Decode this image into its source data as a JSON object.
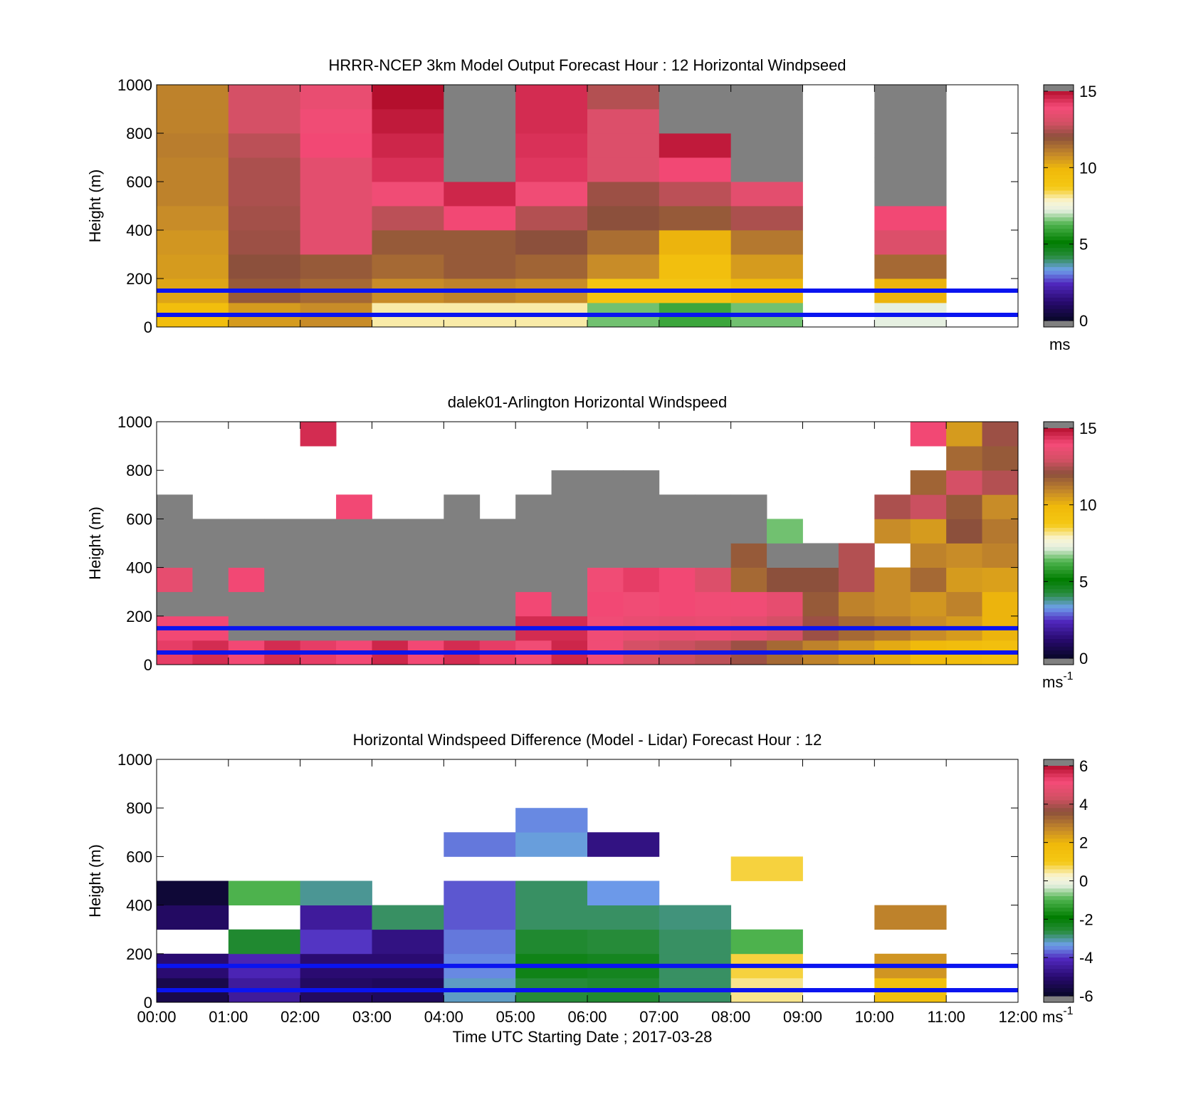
{
  "figure": {
    "xlabel": "Time UTC  Starting Date ; 2017-03-28",
    "x_ticks": [
      "00:00",
      "01:00",
      "02:00",
      "03:00",
      "04:00",
      "05:00",
      "06:00",
      "07:00",
      "08:00",
      "09:00",
      "10:00",
      "11:00",
      "12:00"
    ]
  },
  "colors": {
    "reference_lines": "#0a14f0",
    "missing": "#808080"
  },
  "chart_data": [
    {
      "type": "heatmap",
      "title": "HRRR-NCEP 3km Model Output   Forecast Hour : 12 Horizontal Windpseed",
      "ylabel": "Height (m)",
      "xlim": [
        0,
        12
      ],
      "ylim": [
        0,
        1000
      ],
      "y_ticks": [
        "0",
        "200",
        "400",
        "600",
        "800",
        "1000"
      ],
      "colorbar": {
        "range": [
          0,
          15
        ],
        "ticks": [
          "0",
          "5",
          "10",
          "15"
        ],
        "unit": "ms"
      },
      "reference_lines_m": [
        50,
        150
      ],
      "x_bins_hours": 1,
      "y_bin_m": 100,
      "note_values": "wind speed m/s per hourly column, rows from 0 m upward in 100 m bins; null = no data; \"M\" = gray (missing/above range)",
      "columns": [
        [
          9.5,
          10.3,
          10.5,
          10.6,
          10.8,
          11.0,
          11.0,
          11.1,
          11.0,
          11.0
        ],
        [
          10.5,
          11.8,
          12.0,
          12.2,
          12.3,
          12.4,
          12.4,
          12.6,
          13.0,
          13.0
        ],
        [
          10.8,
          11.5,
          11.8,
          13.4,
          13.4,
          13.4,
          13.4,
          14.0,
          13.8,
          13.6
        ],
        [
          8.0,
          10.8,
          11.5,
          11.8,
          12.6,
          13.8,
          14.4,
          14.6,
          14.8,
          15.0
        ],
        [
          8.0,
          11.0,
          11.8,
          11.8,
          14.0,
          14.6,
          "M",
          "M",
          "M",
          "M"
        ],
        [
          8.0,
          10.8,
          11.6,
          12.0,
          12.5,
          13.8,
          14.3,
          14.4,
          14.5,
          14.5
        ],
        [
          6.5,
          9.0,
          10.8,
          11.4,
          12.0,
          12.2,
          13.2,
          13.2,
          13.2,
          12.5
        ],
        [
          6.0,
          9.0,
          9.4,
          10.0,
          11.8,
          12.6,
          14.0,
          14.8,
          "M",
          "M"
        ],
        [
          6.5,
          9.8,
          10.5,
          11.2,
          12.4,
          13.4,
          "M",
          "M",
          "M",
          "M"
        ],
        [
          null,
          null,
          null,
          null,
          null,
          null,
          null,
          null,
          null,
          null
        ],
        [
          7.2,
          10.0,
          11.5,
          13.2,
          14.0,
          "M",
          "M",
          "M",
          "M",
          "M"
        ],
        [
          null,
          null,
          null,
          null,
          null,
          null,
          null,
          null,
          null,
          null
        ]
      ]
    },
    {
      "type": "heatmap",
      "title": "dalek01-Arlington  Horizontal Windspeed",
      "ylabel": "Height (m)",
      "xlim": [
        0,
        12
      ],
      "ylim": [
        0,
        1000
      ],
      "y_ticks": [
        "0",
        "200",
        "400",
        "600",
        "800",
        "1000"
      ],
      "colorbar": {
        "range": [
          0,
          15
        ],
        "ticks": [
          "0",
          "5",
          "10",
          "15"
        ],
        "unit": "ms",
        "unit_exponent": "-1"
      },
      "reference_lines_m": [
        50,
        150
      ],
      "x_bins_hours": 0.5,
      "y_bin_m": 100,
      "note_values": "approximate lidar wind speed m/s per half-hour column (24 columns), rows 0-1000 m in 100 m bins; null = no data; \"M\" = gray",
      "columns": [
        [
          14.2,
          14.0,
          "M",
          13.5,
          "M",
          "M",
          "M",
          null,
          null,
          null
        ],
        [
          14.5,
          14.0,
          "M",
          "M",
          "M",
          "M",
          null,
          null,
          null,
          null
        ],
        [
          14.0,
          "M",
          "M",
          14.0,
          "M",
          "M",
          null,
          null,
          null,
          null
        ],
        [
          14.5,
          "M",
          "M",
          "M",
          "M",
          "M",
          null,
          null,
          null,
          null
        ],
        [
          14.2,
          "M",
          "M",
          "M",
          "M",
          "M",
          null,
          null,
          null,
          14.5
        ],
        [
          14.0,
          "M",
          "M",
          "M",
          "M",
          "M",
          14.0,
          null,
          null,
          null
        ],
        [
          14.6,
          "M",
          "M",
          "M",
          "M",
          "M",
          null,
          null,
          null,
          null
        ],
        [
          14.0,
          "M",
          "M",
          "M",
          "M",
          "M",
          null,
          null,
          null,
          null
        ],
        [
          14.5,
          "M",
          "M",
          "M",
          "M",
          "M",
          "M",
          null,
          null,
          null
        ],
        [
          14.2,
          "M",
          "M",
          "M",
          "M",
          "M",
          null,
          null,
          null,
          null
        ],
        [
          13.8,
          14.5,
          14.0,
          "M",
          "M",
          "M",
          "M",
          null,
          null,
          null
        ],
        [
          14.6,
          14.5,
          "M",
          "M",
          "M",
          "M",
          "M",
          "M",
          null,
          null
        ],
        [
          13.8,
          13.8,
          14.0,
          13.8,
          "M",
          "M",
          "M",
          "M",
          null,
          null
        ],
        [
          13.0,
          13.6,
          13.8,
          14.2,
          "M",
          "M",
          "M",
          "M",
          null,
          null
        ],
        [
          12.8,
          13.5,
          14.0,
          14.0,
          "M",
          "M",
          "M",
          null,
          null,
          null
        ],
        [
          12.6,
          13.6,
          13.8,
          13.2,
          "M",
          "M",
          "M",
          null,
          null,
          null
        ],
        [
          12.2,
          13.4,
          13.8,
          11.5,
          11.8,
          "M",
          "M",
          null,
          null,
          null
        ],
        [
          11.5,
          13.0,
          13.5,
          12.0,
          "M",
          6.5,
          null,
          null,
          null,
          null
        ],
        [
          11.0,
          12.2,
          11.8,
          12.0,
          "M",
          null,
          null,
          null,
          null,
          null
        ],
        [
          10.6,
          11.5,
          11.0,
          12.5,
          12.5,
          null,
          null,
          null,
          null,
          null
        ],
        [
          10.2,
          11.2,
          10.8,
          10.8,
          null,
          10.8,
          12.4,
          null,
          null,
          null
        ],
        [
          9.8,
          10.8,
          10.6,
          11.5,
          11.0,
          10.5,
          12.8,
          11.6,
          null,
          14.0
        ],
        [
          9.6,
          10.5,
          11.0,
          10.5,
          10.8,
          12.0,
          11.8,
          13.0,
          11.5,
          10.5
        ],
        [
          9.4,
          10.0,
          10.0,
          10.4,
          11.0,
          11.2,
          10.8,
          12.5,
          11.8,
          12.2
        ]
      ]
    },
    {
      "type": "heatmap",
      "title": "Horizontal Windspeed Difference (Model - Lidar) Forecast Hour : 12",
      "ylabel": "Height (m)",
      "xlim": [
        0,
        12
      ],
      "ylim": [
        0,
        1000
      ],
      "y_ticks": [
        "0",
        "200",
        "400",
        "600",
        "800",
        "1000"
      ],
      "colorbar": {
        "range": [
          -6,
          6
        ],
        "ticks": [
          "-6",
          "-4",
          "-2",
          "0",
          "2",
          "4",
          "6"
        ],
        "unit": "ms",
        "unit_exponent": "-1"
      },
      "reference_lines_m": [
        50,
        150
      ],
      "x_bins_hours": 1,
      "y_bin_m": 100,
      "note_values": "difference m/s per hourly column, rows 0-1000 m in 100 m bins; null = no data",
      "columns": [
        [
          -5.5,
          -5.0,
          null,
          -5.2,
          -5.8,
          null,
          null,
          null,
          null,
          null
        ],
        [
          -4.5,
          -4.2,
          -2.5,
          null,
          -1.0,
          null,
          null,
          null,
          null,
          null
        ],
        [
          -5.2,
          -5.0,
          -4.0,
          -4.5,
          -3.0,
          null,
          null,
          null,
          null,
          null
        ],
        [
          -5.3,
          -5.0,
          -4.8,
          -2.8,
          null,
          null,
          null,
          null,
          null,
          null
        ],
        [
          -3.2,
          -3.5,
          -3.6,
          -3.8,
          -3.8,
          null,
          -3.6,
          null,
          null,
          null
        ],
        [
          -2.6,
          -2.2,
          -2.5,
          -2.8,
          -2.8,
          null,
          -3.3,
          -3.5,
          null,
          null
        ],
        [
          -2.5,
          -2.3,
          -2.6,
          -2.8,
          -3.4,
          null,
          -4.8,
          null,
          null,
          null
        ],
        [
          -2.8,
          -2.8,
          -2.8,
          -2.9,
          null,
          null,
          null,
          null,
          null,
          null
        ],
        [
          0.5,
          0.8,
          -1.0,
          null,
          null,
          0.8,
          null,
          null,
          null,
          null
        ],
        [
          null,
          null,
          null,
          null,
          null,
          null,
          null,
          null,
          null,
          null
        ],
        [
          1.5,
          2.5,
          null,
          2.8,
          null,
          null,
          null,
          null,
          null,
          null
        ],
        [
          null,
          null,
          null,
          null,
          null,
          null,
          null,
          null,
          null,
          null
        ]
      ]
    }
  ]
}
